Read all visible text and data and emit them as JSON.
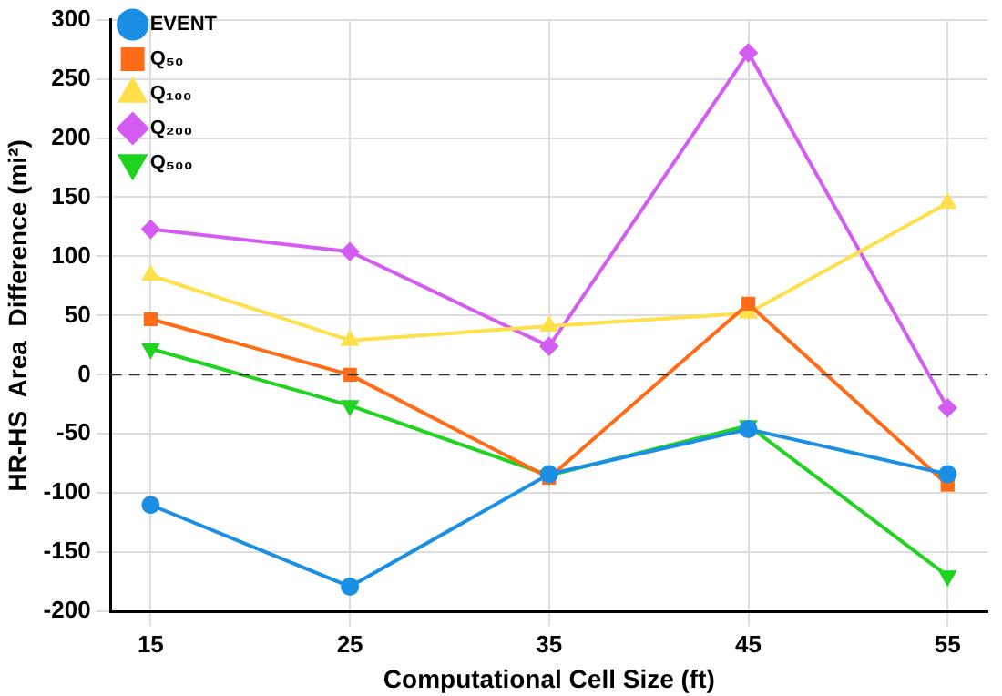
{
  "chart_data": {
    "type": "line",
    "xlabel": "Computational Cell Size (ft)",
    "ylabel": "HR-HS  Area  Difference (mi²)",
    "x": [
      15,
      25,
      35,
      45,
      55
    ],
    "xlim": [
      13,
      57
    ],
    "xticks": [
      15,
      25,
      35,
      45,
      55
    ],
    "ylim": [
      -200,
      300
    ],
    "yticks": [
      -200,
      -150,
      -100,
      -50,
      0,
      50,
      100,
      150,
      200,
      250,
      300
    ],
    "grid": true,
    "legend": "top left",
    "series": [
      {
        "name": "EVENT",
        "color": "#1a8fe3",
        "marker": "circle",
        "values": [
          -110,
          -179,
          -84,
          -46,
          -84
        ]
      },
      {
        "name": "Q₅₀",
        "color": "#ff6b17",
        "marker": "square",
        "values": [
          47,
          0,
          -87,
          60,
          -93
        ]
      },
      {
        "name": "Q₁₀₀",
        "color": "#ffe04a",
        "marker": "triangle",
        "values": [
          84,
          29,
          41,
          52,
          145
        ]
      },
      {
        "name": "Q₂₀₀",
        "color": "#d45cf2",
        "marker": "diamond",
        "values": [
          123,
          104,
          24,
          272,
          -28
        ]
      },
      {
        "name": "Q₅₀₀",
        "color": "#1ed41e",
        "marker": "triangle-down",
        "values": [
          22,
          -26,
          -85,
          -43,
          -170
        ]
      }
    ],
    "ref_lines": [
      {
        "axis": "y",
        "value": 0,
        "color": "#333333",
        "line_style": "dashed"
      }
    ]
  }
}
